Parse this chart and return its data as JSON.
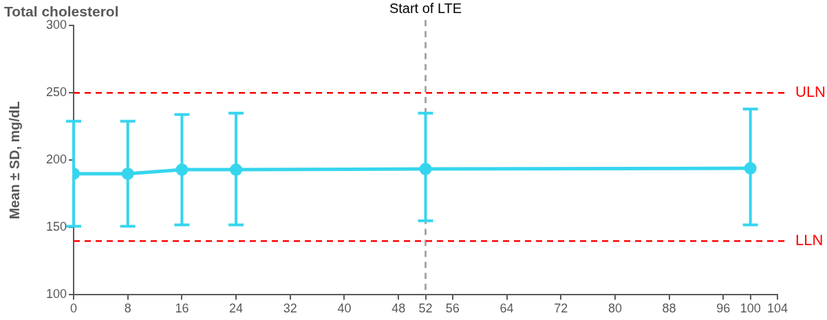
{
  "chart_data": {
    "type": "line",
    "title": "Total cholesterol",
    "ylabel": "Mean ± SD, mg/dL",
    "x": [
      0,
      8,
      16,
      24,
      52,
      100
    ],
    "series": [
      {
        "color": "#36d5ee",
        "values": [
          190,
          190,
          193,
          193,
          193.5,
          194
        ],
        "errors": [
          [
            151,
            229
          ],
          [
            151,
            229
          ],
          [
            152,
            234
          ],
          [
            152,
            235
          ],
          [
            155,
            235
          ],
          [
            152,
            238
          ]
        ]
      }
    ],
    "xlim": [
      0,
      104
    ],
    "xticks": [
      0,
      8,
      16,
      24,
      32,
      40,
      48,
      52,
      56,
      64,
      72,
      80,
      88,
      96,
      100,
      104
    ],
    "ylim": [
      100,
      300
    ],
    "yticks": [
      100,
      150,
      200,
      250,
      300
    ],
    "ref_lines": [
      {
        "axis": "x",
        "value": 52,
        "label": "Start of LTE",
        "color": "#a6a6a6",
        "line_style": "dashed"
      },
      {
        "axis": "y",
        "value": 250,
        "label": "ULN",
        "color": "#ff0000",
        "line_style": "dashed"
      },
      {
        "axis": "y",
        "value": 140,
        "label": "LLN",
        "color": "#ff0000",
        "line_style": "dashed"
      }
    ],
    "grid": false,
    "legend": false,
    "marker": "circle",
    "line_style": "solid"
  }
}
